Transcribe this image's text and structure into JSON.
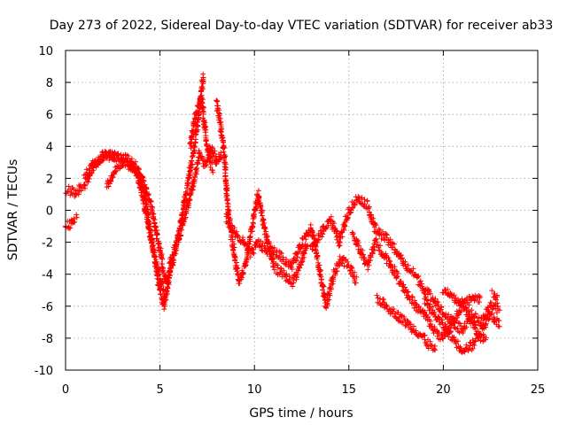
{
  "chart_data": {
    "type": "scatter",
    "title": "Day 273 of 2022, Sidereal Day-to-day VTEC variation (SDTVAR) for receiver ab33",
    "xlabel": "GPS time / hours",
    "ylabel": "SDTVAR / TECUs",
    "xlim": [
      0,
      25
    ],
    "ylim": [
      -10,
      10
    ],
    "xticks": [
      "0",
      "5",
      "10",
      "15",
      "20",
      "25"
    ],
    "yticks": [
      "-10",
      "-8",
      "-6",
      "-4",
      "-2",
      "0",
      "2",
      "4",
      "6",
      "8",
      "10"
    ],
    "grid": true,
    "marker": "+",
    "series": [
      {
        "name": "SDTVAR",
        "color": "#ff0000",
        "tracks": [
          [
            [
              0.0,
              1.3
            ],
            [
              0.5,
              1.1
            ],
            [
              1.0,
              1.6
            ],
            [
              1.5,
              2.8
            ],
            [
              2.0,
              3.4
            ],
            [
              2.5,
              3.4
            ],
            [
              3.0,
              3.1
            ],
            [
              3.5,
              2.7
            ],
            [
              4.0,
              2.2
            ],
            [
              4.5,
              0.5
            ],
            [
              5.0,
              -2.5
            ],
            [
              5.3,
              -4.5
            ],
            [
              5.6,
              -3.5
            ],
            [
              6.0,
              -1.5
            ],
            [
              6.3,
              0.5
            ],
            [
              6.6,
              2.5
            ],
            [
              7.0,
              5.5
            ],
            [
              7.3,
              8.5
            ]
          ],
          [
            [
              0.0,
              -1.0
            ],
            [
              0.3,
              -0.8
            ],
            [
              0.6,
              -0.4
            ]
          ],
          [
            [
              1.0,
              2.2
            ],
            [
              1.5,
              2.9
            ],
            [
              2.0,
              3.4
            ],
            [
              2.5,
              3.4
            ],
            [
              3.0,
              3.3
            ],
            [
              3.5,
              3.1
            ],
            [
              3.8,
              2.7
            ],
            [
              4.2,
              1.0
            ],
            [
              4.5,
              -1.5
            ],
            [
              4.8,
              -3.5
            ],
            [
              5.0,
              -5.0
            ],
            [
              5.2,
              -6.0
            ],
            [
              5.4,
              -4.8
            ],
            [
              5.6,
              -3.0
            ],
            [
              5.9,
              -2.0
            ],
            [
              6.2,
              -1.0
            ],
            [
              6.5,
              0.5
            ],
            [
              6.8,
              2.0
            ],
            [
              7.1,
              3.5
            ],
            [
              7.4,
              2.8
            ],
            [
              7.7,
              4.0
            ],
            [
              8.0,
              3.0
            ],
            [
              8.3,
              3.6
            ]
          ],
          [
            [
              2.2,
              1.5
            ],
            [
              2.6,
              2.4
            ],
            [
              3.0,
              3.0
            ],
            [
              3.4,
              2.9
            ],
            [
              3.8,
              2.2
            ],
            [
              4.2,
              0.2
            ],
            [
              4.6,
              -2.2
            ],
            [
              5.0,
              -4.2
            ],
            [
              5.3,
              -5.5
            ]
          ],
          [
            [
              6.6,
              4.0
            ],
            [
              6.9,
              6.0
            ],
            [
              7.2,
              7.0
            ],
            [
              7.5,
              4.0
            ],
            [
              7.8,
              2.5
            ]
          ],
          [
            [
              8.0,
              6.8
            ],
            [
              8.2,
              5.5
            ],
            [
              8.4,
              3.5
            ],
            [
              8.6,
              0.0
            ],
            [
              8.9,
              -2.5
            ],
            [
              9.2,
              -4.5
            ],
            [
              9.5,
              -3.5
            ],
            [
              9.8,
              -1.5
            ],
            [
              10.2,
              1.0
            ],
            [
              10.6,
              -1.5
            ],
            [
              11.0,
              -3.5
            ],
            [
              11.5,
              -4.0
            ],
            [
              12.0,
              -4.5
            ],
            [
              12.4,
              -3.5
            ],
            [
              12.8,
              -2.0
            ]
          ],
          [
            [
              8.5,
              -0.5
            ],
            [
              9.0,
              -1.5
            ],
            [
              9.4,
              -2.0
            ],
            [
              9.8,
              -2.8
            ],
            [
              10.2,
              -2.0
            ],
            [
              10.6,
              -2.5
            ],
            [
              11.0,
              -2.5
            ],
            [
              11.5,
              -3.0
            ],
            [
              12.0,
              -3.5
            ],
            [
              12.5,
              -2.0
            ],
            [
              13.0,
              -1.0
            ],
            [
              13.4,
              -3.5
            ],
            [
              13.8,
              -6.0
            ],
            [
              14.2,
              -4.0
            ],
            [
              14.6,
              -3.0
            ],
            [
              15.0,
              -3.5
            ],
            [
              15.4,
              -4.5
            ]
          ],
          [
            [
              13.0,
              -2.5
            ],
            [
              13.5,
              -1.5
            ],
            [
              14.0,
              -0.5
            ],
            [
              14.5,
              -2.0
            ],
            [
              15.0,
              0.0
            ],
            [
              15.5,
              0.8
            ],
            [
              16.0,
              0.3
            ],
            [
              16.4,
              -1.2
            ],
            [
              17.0,
              -1.8
            ],
            [
              17.5,
              -2.5
            ],
            [
              18.0,
              -3.5
            ],
            [
              18.5,
              -4.0
            ],
            [
              19.0,
              -5.0
            ],
            [
              19.5,
              -5.5
            ],
            [
              20.0,
              -6.5
            ],
            [
              20.5,
              -7.0
            ],
            [
              21.0,
              -6.0
            ],
            [
              21.5,
              -5.5
            ],
            [
              22.0,
              -5.5
            ]
          ],
          [
            [
              15.2,
              -1.5
            ],
            [
              15.6,
              -2.5
            ],
            [
              16.0,
              -3.5
            ],
            [
              16.4,
              -2.0
            ],
            [
              17.0,
              -3.0
            ],
            [
              17.5,
              -4.0
            ],
            [
              18.0,
              -5.0
            ],
            [
              18.5,
              -6.0
            ],
            [
              19.0,
              -6.5
            ],
            [
              19.5,
              -7.5
            ],
            [
              20.0,
              -8.0
            ],
            [
              20.5,
              -7.0
            ],
            [
              21.0,
              -7.5
            ],
            [
              21.5,
              -6.5
            ],
            [
              22.0,
              -7.0
            ],
            [
              22.5,
              -6.0
            ],
            [
              23.0,
              -6.3
            ]
          ],
          [
            [
              16.5,
              -5.5
            ],
            [
              17.0,
              -6.0
            ],
            [
              17.5,
              -6.5
            ],
            [
              18.0,
              -7.0
            ],
            [
              18.5,
              -7.5
            ],
            [
              19.0,
              -8.0
            ],
            [
              19.3,
              -8.5
            ],
            [
              19.6,
              -8.8
            ]
          ],
          [
            [
              19.0,
              -5.5
            ],
            [
              19.5,
              -6.5
            ],
            [
              20.0,
              -7.2
            ],
            [
              20.5,
              -8.0
            ],
            [
              21.0,
              -8.7
            ],
            [
              21.5,
              -8.5
            ],
            [
              22.0,
              -7.5
            ],
            [
              22.5,
              -6.5
            ],
            [
              23.0,
              -7.2
            ]
          ],
          [
            [
              20.0,
              -5.0
            ],
            [
              20.5,
              -5.5
            ],
            [
              21.0,
              -5.8
            ],
            [
              21.5,
              -7.0
            ],
            [
              22.0,
              -8.0
            ],
            [
              22.3,
              -7.8
            ]
          ],
          [
            [
              22.6,
              -5.2
            ],
            [
              22.9,
              -5.6
            ]
          ]
        ]
      }
    ]
  }
}
